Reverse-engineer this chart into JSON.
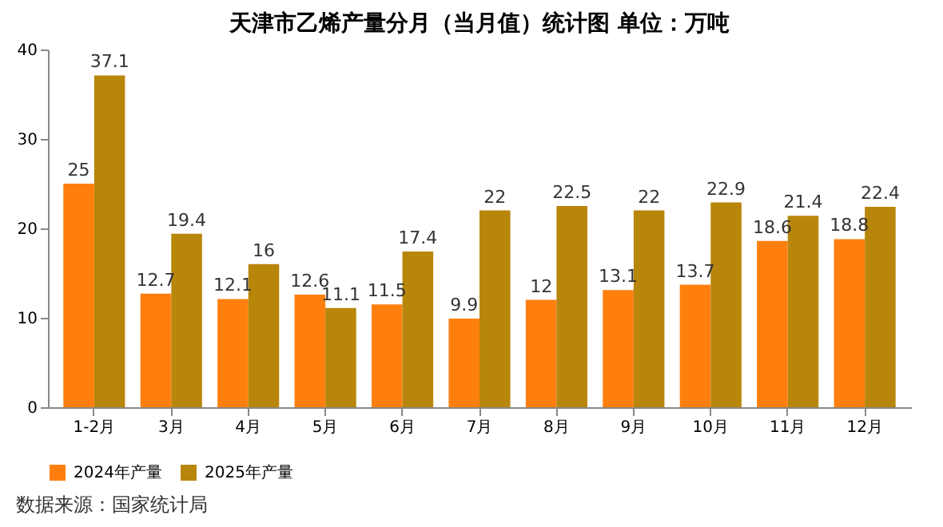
{
  "chart_data": {
    "type": "bar",
    "title": "天津市乙烯产量分月（当月值）统计图 单位：万吨",
    "categories": [
      "1-2月",
      "3月",
      "4月",
      "5月",
      "6月",
      "7月",
      "8月",
      "9月",
      "10月",
      "11月",
      "12月"
    ],
    "series": [
      {
        "name": "2024年产量",
        "color": "#ff7f0e",
        "values": [
          25,
          12.7,
          12.1,
          12.6,
          11.5,
          9.9,
          12,
          13.1,
          13.7,
          18.6,
          18.8
        ]
      },
      {
        "name": "2025年产量",
        "color": "#b8860b",
        "values": [
          37.1,
          19.4,
          16,
          11.1,
          17.4,
          22,
          22.5,
          22,
          22.9,
          21.4,
          22.4
        ]
      }
    ],
    "ylim": [
      0,
      40
    ],
    "yticks": [
      0,
      10,
      20,
      30,
      40
    ],
    "grid": false,
    "legend": "bottom",
    "data_labels": true,
    "annotations": [
      "数据来源：国家统计局"
    ]
  }
}
